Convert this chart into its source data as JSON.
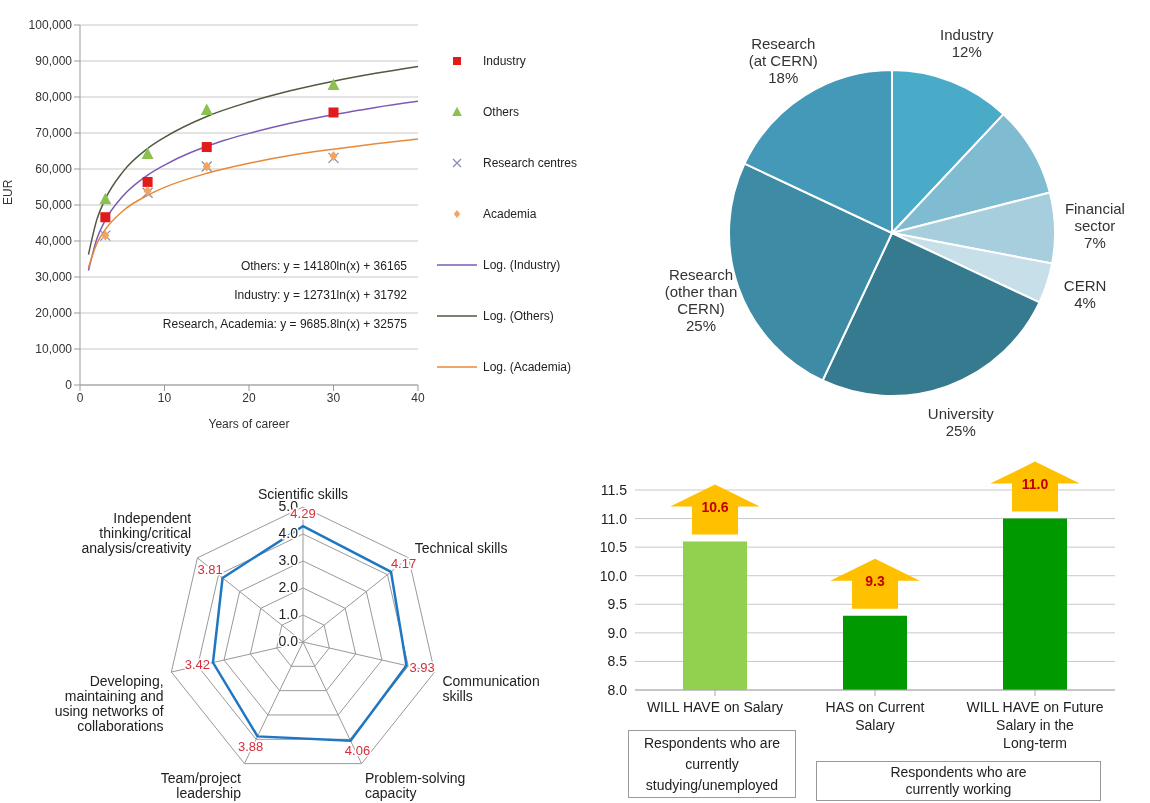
{
  "chart_data": [
    {
      "type": "scatter",
      "xlabel": "Years of career",
      "ylabel": "EUR",
      "xlim": [
        0,
        40
      ],
      "xticks": [
        0,
        10,
        20,
        30,
        40
      ],
      "ylim": [
        0,
        100000
      ],
      "yticks": [
        0,
        {
          "value": 10000,
          "label": "10,000"
        },
        {
          "value": 20000,
          "label": "20,000"
        },
        {
          "value": 30000,
          "label": "30,000"
        },
        {
          "value": 40000,
          "label": "40,000"
        },
        {
          "value": 50000,
          "label": "50,000"
        },
        {
          "value": 60000,
          "label": "60,000"
        },
        {
          "value": 70000,
          "label": "70,000"
        },
        {
          "value": 80000,
          "label": "80,000"
        },
        {
          "value": 90000,
          "label": "90,000"
        },
        {
          "value": 100000,
          "label": "100,000"
        }
      ],
      "grid": "y",
      "legend": "right",
      "annotations": [
        "Others: y = 14180ln(x) + 36165",
        "Industry: y = 12731ln(x) + 31792",
        "Research, Academia: y = 9685.8ln(x) + 32575"
      ],
      "series": [
        {
          "name": "Industry",
          "type": "scatter",
          "marker": "square",
          "color": "#e31a1c",
          "x": [
            3,
            8,
            15,
            30
          ],
          "values": [
            46600,
            56400,
            66100,
            75700
          ]
        },
        {
          "name": "Others",
          "type": "scatter",
          "marker": "triangle",
          "color": "#8cc152",
          "x": [
            3,
            8,
            15,
            30
          ],
          "values": [
            51600,
            64200,
            76400,
            83300
          ]
        },
        {
          "name": "Research centres",
          "type": "scatter",
          "marker": "cross",
          "color": "#8a8fb0",
          "x": [
            3,
            8,
            15,
            30
          ],
          "values": [
            41500,
            53400,
            60700,
            63100
          ]
        },
        {
          "name": "Academia",
          "type": "scatter",
          "marker": "diamond",
          "color": "#f4a460",
          "x": [
            3,
            8,
            15,
            30
          ],
          "values": [
            41500,
            53900,
            60700,
            63600
          ]
        },
        {
          "name": "Log. (Industry)",
          "type": "line",
          "marker": "none",
          "color": "#7b5bb5",
          "x": [
            1,
            2,
            3,
            5,
            8,
            10,
            17,
            20,
            25,
            33,
            35,
            40
          ],
          "values": [
            31800,
            40600,
            45800,
            52300,
            58300,
            61100,
            67900,
            69900,
            72800,
            76300,
            77100,
            78800
          ]
        },
        {
          "name": "Log. (Others)",
          "type": "line",
          "marker": "none",
          "color": "#4f5a40",
          "x": [
            1,
            2,
            3,
            5,
            8,
            10,
            15,
            20,
            25,
            30,
            35,
            40
          ],
          "values": [
            36200,
            46000,
            51700,
            59000,
            65700,
            68800,
            74600,
            78600,
            81800,
            84400,
            86600,
            88500
          ]
        },
        {
          "name": "Log. (Academia)",
          "type": "line",
          "marker": "none",
          "color": "#e8893a",
          "x": [
            1,
            2,
            3,
            5,
            8,
            10,
            15,
            20,
            25,
            30,
            35,
            40
          ],
          "values": [
            32600,
            39300,
            43200,
            48200,
            52700,
            54900,
            58800,
            61600,
            63800,
            65500,
            67000,
            68300
          ]
        }
      ]
    },
    {
      "type": "pie",
      "categories": [
        "Industry",
        null,
        "Financial sector",
        "CERN",
        "University",
        "Research (other than CERN)",
        "Research (at CERN)"
      ],
      "values": [
        12,
        9,
        7,
        4,
        25,
        25,
        18
      ],
      "value_labels": [
        "12%",
        null,
        "7%",
        "4%",
        "25%",
        "25%",
        "18%"
      ],
      "colors": [
        "#4aabc8",
        "#7fbcd2",
        "#a6cedd",
        "#c6dfe8",
        "#357a8e",
        "#3e8ba6",
        "#4499b8"
      ]
    },
    {
      "type": "radar",
      "categories": [
        "Scientific skills",
        "Technical skills",
        "Communication skills",
        "Problem-solving capacity",
        "Team/project leadership",
        "Developing, maintaining and using networks of collaborations",
        "Independent thinking/critical analysis/creativity"
      ],
      "ylim": [
        0,
        5
      ],
      "yticks": [
        {
          "value": 0,
          "label": "0.0"
        },
        {
          "value": 1,
          "label": "1.0"
        },
        {
          "value": 2,
          "label": "2.0"
        },
        {
          "value": 3,
          "label": "3.0"
        },
        {
          "value": 4,
          "label": "4.0"
        },
        {
          "value": 5,
          "label": "5.0"
        }
      ],
      "grid": true,
      "data_labels": true,
      "series": [
        {
          "color": "#1f77c4",
          "values": [
            4.29,
            4.17,
            3.93,
            4.06,
            3.88,
            3.42,
            3.81
          ]
        }
      ]
    },
    {
      "type": "bar",
      "categories": [
        "WILL HAVE on Salary",
        "HAS on Current Salary",
        "WILL HAVE on Future Salary in the Long-term"
      ],
      "values": [
        10.6,
        9.3,
        11.0
      ],
      "value_labels": [
        "10.6",
        "9.3",
        "11.0"
      ],
      "colors": [
        "#92d050",
        "#009900",
        "#009900"
      ],
      "ylim": [
        8,
        11.5
      ],
      "yticks": [
        {
          "value": 8,
          "label": "8.0"
        },
        {
          "value": 8.5,
          "label": "8.5"
        },
        {
          "value": 9,
          "label": "9.0"
        },
        {
          "value": 9.5,
          "label": "9.5"
        },
        {
          "value": 10,
          "label": "10.0"
        },
        {
          "value": 10.5,
          "label": "10.5"
        },
        {
          "value": 11,
          "label": "11.0"
        },
        {
          "value": 11.5,
          "label": "11.5"
        }
      ],
      "grid": "y",
      "annotations": [
        "Respondents who are currently studying/unemployed",
        "Respondents who are currently working"
      ]
    }
  ]
}
